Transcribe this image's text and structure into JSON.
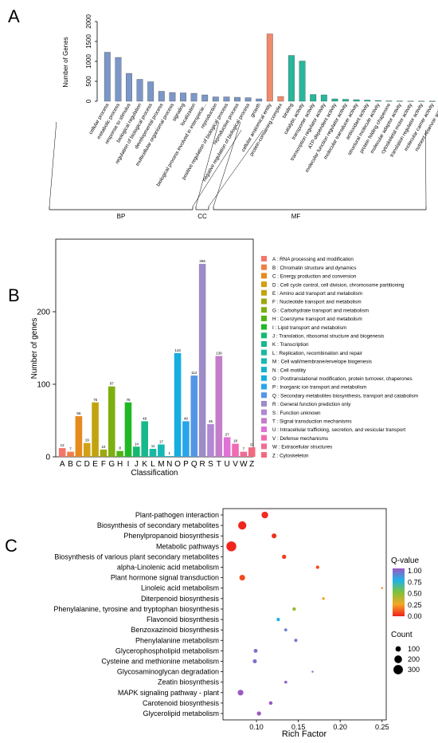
{
  "chart_data": [
    {
      "panel_label": "A",
      "type": "bar",
      "ylabel": "Number of Genes",
      "ylim": [
        0,
        2000
      ],
      "yticks": [
        0,
        500,
        1000,
        1500,
        2000
      ],
      "groups": [
        {
          "name": "BP",
          "color": "#7b97c7",
          "categories": [
            "cellular process",
            "metabolic process",
            "response to stimulus",
            "biological regulation",
            "regulation of biological process",
            "developmental process",
            "multicellular organismal process",
            "signaling",
            "localization",
            "biological process involved in interspecie...",
            "reproduction",
            "positive regulation of biological process",
            "reproductive process",
            "negative regulation of biological process",
            "growth"
          ],
          "values": [
            1230,
            1100,
            700,
            550,
            490,
            250,
            220,
            210,
            200,
            160,
            110,
            110,
            100,
            90,
            60
          ]
        },
        {
          "name": "CC",
          "color": "#f08a6c",
          "categories": [
            "cellular anatomical entity",
            "protein-containing complex"
          ],
          "values": [
            1690,
            120
          ]
        },
        {
          "name": "MF",
          "color": "#27b79c",
          "categories": [
            "binding",
            "catalytic activity",
            "transporter activity",
            "transcription regulator activity",
            "ATP-dependent activity",
            "molecular function regulator activity",
            "molecular transducer activity",
            "antioxidant activity",
            "structural molecule activity",
            "protein folding chaperone",
            "molecular adaptor activity",
            "cytoskeletal motor activity",
            "translation regulator activity",
            "molecular carrier activity",
            "nutrient reservoir activity"
          ],
          "values": [
            1150,
            1010,
            170,
            160,
            60,
            50,
            40,
            30,
            20,
            10,
            8,
            5,
            4,
            3,
            2
          ]
        }
      ]
    },
    {
      "panel_label": "B",
      "type": "bar",
      "xlabel": "Classification",
      "ylabel": "Number of genes",
      "ylim": [
        0,
        300
      ],
      "yticks": [
        0,
        100,
        200
      ],
      "categories": [
        "A",
        "B",
        "C",
        "D",
        "E",
        "F",
        "G",
        "H",
        "I",
        "J",
        "K",
        "L",
        "M",
        "N",
        "O",
        "P",
        "Q",
        "R",
        "S",
        "T",
        "U",
        "V",
        "W",
        "Z"
      ],
      "values": [
        12,
        7,
        56,
        19,
        75,
        10,
        97,
        8,
        75,
        14,
        49,
        11,
        17,
        1,
        143,
        49,
        112,
        266,
        45,
        139,
        27,
        18,
        7,
        13
      ],
      "colors": [
        "#f4766b",
        "#ef7f45",
        "#e78a1e",
        "#d39f13",
        "#c2a30e",
        "#9fa80e",
        "#7caf10",
        "#52b314",
        "#21b826",
        "#13b96e",
        "#16b98a",
        "#18b9a3",
        "#17b7b4",
        "#15b4c6",
        "#16aee0",
        "#2aa4ea",
        "#5396e6",
        "#9d8cc8",
        "#b088d3",
        "#c47dc8",
        "#df72d4",
        "#f06bb2",
        "#f06b96",
        "#f2697f"
      ],
      "legend": [
        "A : RNA processing and modification",
        "B : Chromatin structure and dynamics",
        "C : Energy production and conversion",
        "D : Cell cycle control, cell division, chromosome partitioning",
        "E : Amino acid transport and metabolism",
        "F : Nucleotide transport and metabolism",
        "G : Carbohydrate transport and metabolism",
        "H : Coenzyme transport and metabolism",
        "I : Lipid transport and metabolism",
        "J : Translation, ribosomal structure and biogenesis",
        "K : Transcription",
        "L : Replication, recombination and repair",
        "M : Cell wall/membrane/envelope biogenesis",
        "N : Cell motility",
        "O : Posttranslational modification, protein turnover, chaperones",
        "P : Inorganic ion transport and metabolism",
        "Q : Secondary metabolites biosynthesis, transport and catabolism",
        "R : General function prediction only",
        "S : Function unknown",
        "T : Signal transduction mechanisms",
        "U : Intracellular trafficking, secretion, and vesicular transport",
        "V : Defense mechanisms",
        "W : Extracellular structures",
        "Z : Cytoskeleton"
      ]
    },
    {
      "panel_label": "C",
      "type": "scatter",
      "xlabel": "Rich Factor",
      "xlim": [
        0.06,
        0.255
      ],
      "xticks": [
        0.1,
        0.15,
        0.2,
        0.25
      ],
      "xtick_labels": [
        "0.10",
        "0.15",
        "0.20",
        "0.25"
      ],
      "pathways": [
        "Plant-pathogen interaction",
        "Biosynthesis of secondary metabolites",
        "Phenylpropanoid biosynthesis",
        "Metabolic pathways",
        "Biosynthesis of various plant secondary metabolites",
        "alpha-Linolenic acid metabolism",
        "Plant hormone signal transduction",
        "Linoleic acid metabolism",
        "Diterpenoid biosynthesis",
        "Phenylalanine, tyrosine and tryptophan biosynthesis",
        "Flavonoid biosynthesis",
        "Benzoxazinoid biosynthesis",
        "Phenylalanine metabolism",
        "Glycerophospholipid metabolism",
        "Cysteine and methionine metabolism",
        "Glycosaminoglycan degradation",
        "Zeatin biosynthesis",
        "MAPK signaling pathway - plant",
        "Carotenoid biosynthesis",
        "Glycerolipid metabolism"
      ],
      "points": [
        {
          "x": 0.11,
          "count": 150,
          "q": 0.02
        },
        {
          "x": 0.083,
          "count": 230,
          "q": 0.01
        },
        {
          "x": 0.121,
          "count": 80,
          "q": 0.03
        },
        {
          "x": 0.07,
          "count": 330,
          "q": 0.01
        },
        {
          "x": 0.133,
          "count": 60,
          "q": 0.05
        },
        {
          "x": 0.173,
          "count": 40,
          "q": 0.08
        },
        {
          "x": 0.083,
          "count": 110,
          "q": 0.08
        },
        {
          "x": 0.25,
          "count": 10,
          "q": 0.15
        },
        {
          "x": 0.18,
          "count": 25,
          "q": 0.25
        },
        {
          "x": 0.145,
          "count": 40,
          "q": 0.45
        },
        {
          "x": 0.126,
          "count": 40,
          "q": 0.75
        },
        {
          "x": 0.135,
          "count": 30,
          "q": 0.9
        },
        {
          "x": 0.147,
          "count": 35,
          "q": 0.92
        },
        {
          "x": 0.099,
          "count": 50,
          "q": 0.95
        },
        {
          "x": 0.098,
          "count": 55,
          "q": 0.95
        },
        {
          "x": 0.167,
          "count": 10,
          "q": 0.97
        },
        {
          "x": 0.135,
          "count": 30,
          "q": 0.97
        },
        {
          "x": 0.081,
          "count": 110,
          "q": 1.0
        },
        {
          "x": 0.117,
          "count": 45,
          "q": 1.0
        },
        {
          "x": 0.103,
          "count": 60,
          "q": 1.0
        }
      ],
      "colorbar": {
        "title": "Q-value",
        "ticks": [
          "1.00",
          "0.75",
          "0.50",
          "0.25",
          "0.00"
        ],
        "colors": [
          "#9b59c4",
          "#1fb4e8",
          "#7dc238",
          "#f5a623",
          "#f0211c"
        ]
      },
      "size_legend": {
        "title": "Count",
        "values": [
          100,
          200,
          300
        ]
      }
    }
  ]
}
